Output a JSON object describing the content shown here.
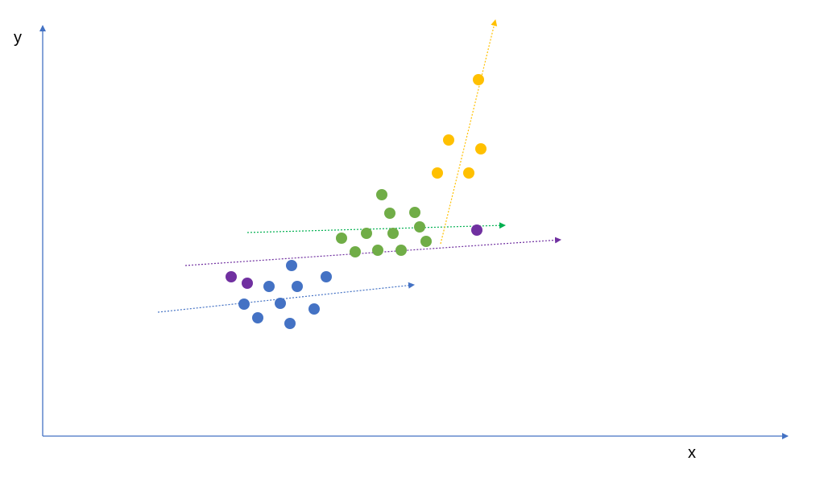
{
  "axes": {
    "x_label": "x",
    "y_label": "y",
    "color": "#4472C4"
  },
  "groups": [
    {
      "id": "blue",
      "color": "#4472C4"
    },
    {
      "id": "purple",
      "color": "#7030A0"
    },
    {
      "id": "green",
      "color": "#70AD47"
    },
    {
      "id": "yellow",
      "color": "#FFC000"
    }
  ],
  "arrow_colors": {
    "blue": "#4472C4",
    "green": "#00B050",
    "purple": "#7030A0",
    "yellow": "#FFC000"
  }
}
